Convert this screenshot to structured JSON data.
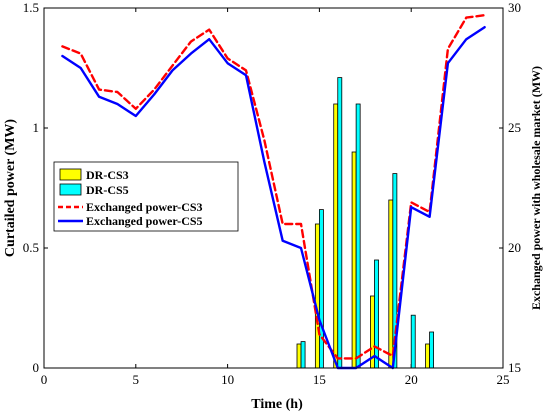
{
  "chart_data": {
    "type": "bar+line",
    "xlabel": "Time (h)",
    "ylabel_left": "Curtailed power (MW)",
    "ylabel_right": "Exchanged power with wholesale market (MW)",
    "xlim": [
      0,
      25
    ],
    "ylim_left": [
      0,
      1.5
    ],
    "ylim_right": [
      15,
      30
    ],
    "x_ticks": [
      0,
      5,
      10,
      15,
      20,
      25
    ],
    "y_left_ticks": [
      0,
      0.5,
      1,
      1.5
    ],
    "y_right_ticks": [
      15,
      20,
      25,
      30
    ],
    "x_tick_labels": [
      "0",
      "5",
      "10",
      "15",
      "20",
      "25"
    ],
    "y_left_tick_labels": [
      "0",
      "0.5",
      "1",
      "1.5"
    ],
    "y_right_tick_labels": [
      "15",
      "20",
      "25",
      "30"
    ],
    "legend_position": "middle-left",
    "bar_series": [
      {
        "name": "DR-CS3",
        "color": "#ffff00",
        "x": [
          14,
          15,
          16,
          17,
          18,
          19,
          21
        ],
        "values": [
          0.1,
          0.6,
          1.1,
          0.9,
          0.3,
          0.7,
          0.1
        ]
      },
      {
        "name": "DR-CS5",
        "color": "#00ffff",
        "x": [
          14,
          15,
          16,
          17,
          18,
          19,
          20,
          21
        ],
        "values": [
          0.11,
          0.66,
          1.21,
          1.1,
          0.45,
          0.81,
          0.22,
          0.15
        ]
      }
    ],
    "line_series": [
      {
        "name": "Exchanged power-CS3",
        "color": "#ff0000",
        "style": "dashed",
        "x": [
          1,
          2,
          3,
          4,
          5,
          6,
          7,
          8,
          9,
          10,
          11,
          12,
          13,
          14,
          15,
          16,
          17,
          18,
          19,
          20,
          21,
          22,
          23,
          24
        ],
        "values": [
          28.4,
          28.1,
          26.6,
          26.5,
          25.8,
          26.6,
          27.6,
          28.6,
          29.1,
          27.9,
          27.4,
          24.5,
          21.0,
          21.0,
          16.4,
          15.4,
          15.4,
          15.9,
          15.5,
          21.9,
          21.5,
          28.3,
          29.6,
          29.7
        ]
      },
      {
        "name": "Exchanged power-CS5",
        "color": "#0000ff",
        "style": "solid",
        "x": [
          1,
          2,
          3,
          4,
          5,
          6,
          7,
          8,
          9,
          10,
          11,
          12,
          13,
          14,
          15,
          16,
          17,
          18,
          19,
          20,
          21,
          22,
          23,
          24
        ],
        "values": [
          28.0,
          27.5,
          26.3,
          26.0,
          25.5,
          26.4,
          27.4,
          28.1,
          28.7,
          27.7,
          27.2,
          23.6,
          20.3,
          20.0,
          17.0,
          15.0,
          15.0,
          15.5,
          15.0,
          21.7,
          21.3,
          27.7,
          28.7,
          29.2
        ]
      }
    ]
  }
}
